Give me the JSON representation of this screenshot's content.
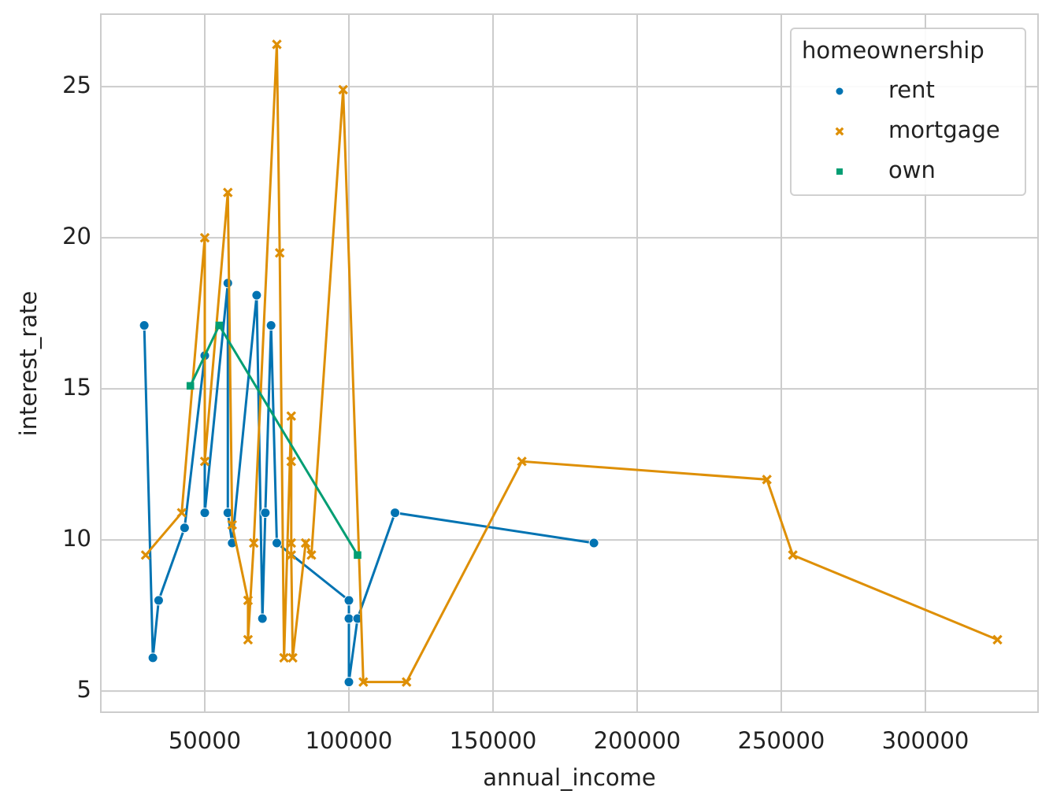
{
  "chart_data": {
    "type": "line",
    "x_label": "annual_income",
    "y_label": "interest_rate",
    "legend_title": "homeownership",
    "legend_position": "upper right",
    "grid": true,
    "markers": true,
    "xlim": [
      13934,
      339071
    ],
    "ylim": [
      4.3,
      27.4
    ],
    "xticks": [
      50000,
      100000,
      150000,
      200000,
      250000,
      300000
    ],
    "yticks": [
      5,
      10,
      15,
      20,
      25
    ],
    "series": [
      {
        "name": "rent",
        "color": "#0173b2",
        "marker": "circle",
        "x": [
          29000,
          32000,
          34000,
          43000,
          50000,
          50000,
          58000,
          58000,
          59500,
          68000,
          70000,
          71000,
          73000,
          75000,
          100000,
          100000,
          100000,
          103000,
          116000,
          185000
        ],
        "values": [
          17.1,
          6.1,
          8.0,
          10.4,
          16.1,
          10.9,
          18.5,
          10.9,
          9.9,
          18.1,
          7.4,
          10.9,
          17.1,
          9.9,
          8.0,
          7.4,
          5.3,
          7.4,
          10.9,
          9.9
        ]
      },
      {
        "name": "mortgage",
        "color": "#de8f05",
        "marker": "x",
        "x": [
          29500,
          42000,
          50000,
          50000,
          58000,
          59500,
          65000,
          65000,
          67000,
          75000,
          76000,
          77500,
          80000,
          80000,
          80000,
          80000,
          80500,
          85000,
          87000,
          98000,
          105000,
          120000,
          160000,
          245000,
          254000,
          325000
        ],
        "values": [
          9.5,
          10.9,
          20.0,
          12.6,
          21.5,
          10.5,
          8.0,
          6.7,
          9.9,
          26.4,
          19.5,
          6.1,
          14.1,
          12.6,
          9.9,
          9.5,
          6.1,
          9.9,
          9.5,
          24.9,
          5.3,
          5.3,
          12.6,
          12.0,
          9.5,
          6.7
        ]
      },
      {
        "name": "own",
        "color": "#029e73",
        "marker": "square",
        "x": [
          45000,
          55000,
          103000
        ],
        "values": [
          15.1,
          17.1,
          9.5
        ]
      }
    ]
  }
}
